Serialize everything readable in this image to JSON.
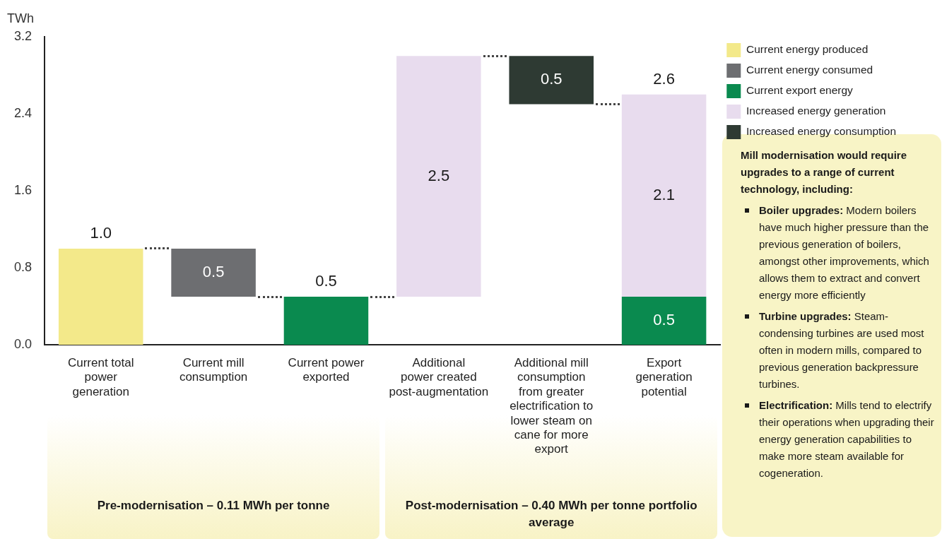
{
  "chart_data": {
    "type": "bar",
    "ylabel": "TWh",
    "categories": [
      "Current total power generation",
      "Current mill consumption",
      "Current power exported",
      "Additional power created post-augmentation",
      "Additional mill consumption from greater electrification to lower steam on cane for more export",
      "Export generation potential"
    ],
    "series": [
      {
        "name": "Current energy produced",
        "color": "#f3e98a",
        "values": [
          1.0,
          null,
          null,
          null,
          null,
          null
        ],
        "value_labels": [
          "1.0",
          null,
          null,
          null,
          null,
          null
        ]
      },
      {
        "name": "Current energy consumed",
        "color": "#6d6e71",
        "values": [
          null,
          0.5,
          null,
          null,
          null,
          null
        ],
        "base": [
          null,
          0.5,
          null,
          null,
          null,
          null
        ],
        "value_labels": [
          null,
          "0.5",
          null,
          null,
          null,
          null
        ]
      },
      {
        "name": "Current export energy",
        "color": "#0a8a4f",
        "values": [
          null,
          null,
          0.5,
          null,
          null,
          0.5
        ],
        "value_labels": [
          null,
          null,
          "0.5",
          null,
          null,
          "0.5"
        ]
      },
      {
        "name": "Increased energy generation",
        "color": "#e8dcee",
        "values": [
          null,
          null,
          null,
          2.5,
          null,
          2.1
        ],
        "base": [
          null,
          null,
          null,
          0.5,
          null,
          0.5
        ],
        "value_labels": [
          null,
          null,
          null,
          "2.5",
          null,
          "2.1"
        ]
      },
      {
        "name": "Increased energy consumption",
        "color": "#2e3a33",
        "values": [
          null,
          null,
          null,
          null,
          0.5,
          null
        ],
        "base": [
          null,
          null,
          null,
          null,
          2.5,
          null
        ],
        "value_labels": [
          null,
          null,
          null,
          null,
          "0.5",
          null
        ]
      }
    ],
    "totals": [
      null,
      null,
      null,
      null,
      null,
      "2.6"
    ],
    "ylim": [
      0,
      3.2
    ],
    "yticks": [
      {
        "value": 0,
        "label": "0.0"
      },
      {
        "value": 0.8,
        "label": "0.8"
      },
      {
        "value": 1.6,
        "label": "1.6"
      },
      {
        "value": 2.4,
        "label": "2.4"
      },
      {
        "value": 3.2,
        "label": "3.2"
      }
    ],
    "grid": false,
    "legend": "top right",
    "annotations": [
      "Pre-modernisation – 0.11 MWh per tonne",
      "Post-modernisation – 0.40 MWh per tonne portfolio average",
      "Mill modernisation would require upgrades to a range of current technology, including:",
      "Boiler upgrades: Modern boilers have much higher pressure than the previous generation of boilers, amongst other improvements, which allows them to extract and convert energy more efficiently",
      "Turbine upgrades: Steam-condensing turbines are used most often in modern mills, compared to previous generation backpressure turbines.",
      "Electrification: Mills tend to electrify their operations when upgrading their energy generation capabilities to make more steam available for cogeneration."
    ]
  }
}
